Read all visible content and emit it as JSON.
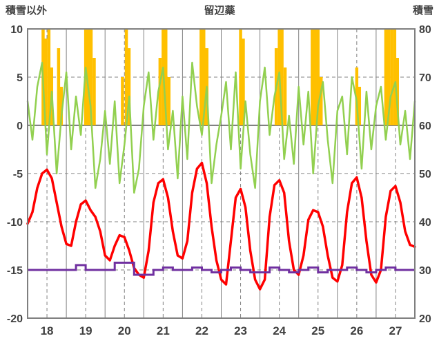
{
  "header": {
    "left_label": "積雪以外",
    "title": "留辺蘂",
    "right_label": "積雪"
  },
  "chart_data": {
    "type": "line",
    "title": "留辺蘂",
    "left_axis": {
      "label": "積雪以外",
      "min": -20,
      "max": 10,
      "ticks": [
        10,
        5,
        0,
        -5,
        -10,
        -15,
        -20
      ]
    },
    "right_axis": {
      "label": "積雪",
      "min": 20,
      "max": 80,
      "ticks": [
        80,
        70,
        60,
        50,
        40,
        30,
        20
      ]
    },
    "x_axis": {
      "labels": [
        18,
        19,
        20,
        21,
        22,
        23,
        24,
        25,
        26,
        27
      ],
      "days": 10
    },
    "grid": {
      "h_solid": [
        0
      ],
      "h_dashed": [
        5,
        -5,
        -10,
        -15
      ],
      "grid_color": "#808080",
      "zero_line_color": "#595959",
      "frame_color": "#7f7f7f"
    },
    "series": [
      {
        "name": "sunshine-bars",
        "type": "bar",
        "axis": "left",
        "color": "#FFC000",
        "bar_width_days": 0.08,
        "bars": [
          [
            0.4,
            12
          ],
          [
            0.47,
            9
          ],
          [
            0.55,
            12
          ],
          [
            0.62,
            6
          ],
          [
            0.8,
            8
          ],
          [
            0.87,
            4
          ],
          [
            1.5,
            12
          ],
          [
            1.57,
            12
          ],
          [
            1.64,
            11
          ],
          [
            1.72,
            7
          ],
          [
            2.45,
            5
          ],
          [
            2.55,
            12
          ],
          [
            2.62,
            8
          ],
          [
            3.42,
            7
          ],
          [
            3.5,
            12
          ],
          [
            3.57,
            11
          ],
          [
            3.65,
            5
          ],
          [
            4.48,
            12
          ],
          [
            4.55,
            12
          ],
          [
            4.63,
            8
          ],
          [
            5.5,
            12
          ],
          [
            5.57,
            9
          ],
          [
            6.42,
            8
          ],
          [
            6.5,
            12
          ],
          [
            6.57,
            12
          ],
          [
            6.65,
            6
          ],
          [
            7.35,
            12
          ],
          [
            7.42,
            11
          ],
          [
            7.5,
            12
          ],
          [
            7.58,
            5
          ],
          [
            8.5,
            6
          ],
          [
            8.57,
            4
          ],
          [
            9.25,
            12
          ],
          [
            9.32,
            12
          ],
          [
            9.4,
            12
          ],
          [
            9.48,
            10
          ],
          [
            9.55,
            7
          ]
        ]
      },
      {
        "name": "wind-line",
        "type": "line",
        "axis": "left",
        "color": "#92D050",
        "width": 2.5,
        "points_per_day": 8,
        "values": [
          2.5,
          -1.5,
          4.0,
          6.5,
          -3.0,
          3.5,
          -5.0,
          1.0,
          5.5,
          -2.5,
          3.0,
          -1.0,
          6.0,
          2.0,
          -6.5,
          -3.5,
          1.5,
          -4.0,
          2.5,
          -6.0,
          -2.0,
          3.0,
          -7.0,
          -4.5,
          2.0,
          5.5,
          -1.5,
          3.5,
          6.0,
          -2.5,
          1.5,
          -5.5,
          3.0,
          -3.5,
          6.5,
          2.0,
          -1.0,
          4.0,
          -6.0,
          -2.0,
          1.0,
          4.5,
          -2.5,
          5.5,
          -4.5,
          2.5,
          -3.0,
          -6.5,
          2.5,
          6.0,
          -1.0,
          3.0,
          5.5,
          -3.5,
          1.0,
          -4.0,
          4.0,
          -2.0,
          3.5,
          -5.0,
          2.0,
          4.5,
          -1.5,
          -6.0,
          1.5,
          3.0,
          -3.0,
          5.0,
          2.5,
          -4.5,
          3.5,
          -2.5,
          2.0,
          4.0,
          -1.5,
          3.0,
          4.5,
          -2.0,
          1.5,
          -3.5,
          2.5
        ]
      },
      {
        "name": "temperature-line",
        "type": "line",
        "axis": "left",
        "color": "#FF0000",
        "width": 3.5,
        "points_per_day": 8,
        "values": [
          -10.2,
          -9.0,
          -6.5,
          -5.0,
          -4.6,
          -5.5,
          -8.0,
          -10.5,
          -12.3,
          -12.5,
          -10.0,
          -8.2,
          -7.8,
          -8.8,
          -9.5,
          -11.0,
          -13.5,
          -14.0,
          -12.5,
          -11.4,
          -11.6,
          -13.0,
          -14.8,
          -15.5,
          -15.8,
          -13.0,
          -8.0,
          -6.0,
          -5.6,
          -7.5,
          -11.0,
          -13.5,
          -13.8,
          -12.0,
          -7.0,
          -4.5,
          -3.9,
          -6.0,
          -10.5,
          -14.0,
          -16.0,
          -16.5,
          -12.0,
          -7.5,
          -6.6,
          -8.5,
          -13.0,
          -16.0,
          -17.0,
          -16.0,
          -9.5,
          -6.2,
          -5.7,
          -7.0,
          -12.0,
          -15.0,
          -15.5,
          -13.5,
          -9.8,
          -8.8,
          -9.0,
          -10.5,
          -13.5,
          -15.8,
          -16.2,
          -14.5,
          -9.0,
          -6.0,
          -5.4,
          -7.5,
          -12.0,
          -15.5,
          -16.3,
          -15.0,
          -9.5,
          -6.8,
          -6.3,
          -8.0,
          -11.0,
          -12.4,
          -12.6
        ]
      },
      {
        "name": "snow-depth-step",
        "type": "step",
        "axis": "right",
        "color": "#7030A0",
        "width": 3,
        "points_per_day": 4,
        "values": [
          30,
          30,
          30,
          30,
          30,
          31,
          30,
          30,
          30,
          31.5,
          31.5,
          29,
          29,
          30,
          30.5,
          30,
          30,
          30.5,
          30,
          29.5,
          30,
          30.5,
          30,
          29.5,
          29.5,
          30.5,
          30,
          29.5,
          30,
          30.5,
          29.5,
          30,
          30,
          30.5,
          30,
          29.5,
          30,
          30.5,
          30,
          30
        ]
      }
    ]
  }
}
